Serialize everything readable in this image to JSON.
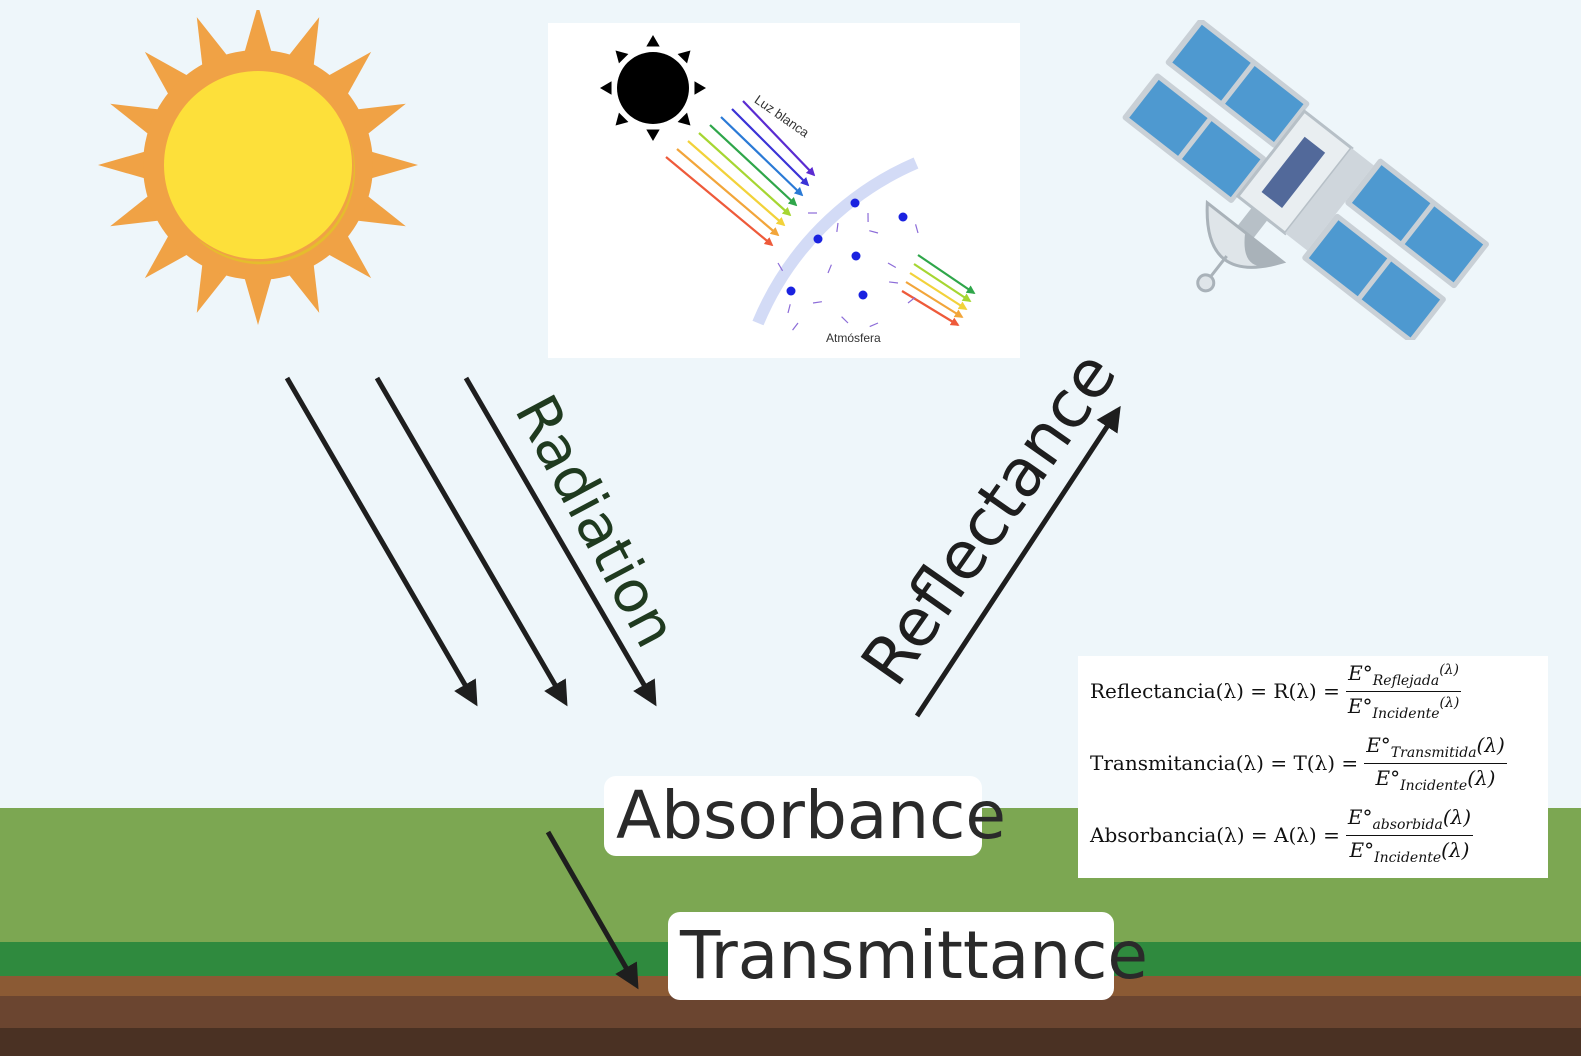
{
  "labels": {
    "radiation": "Radiation",
    "reflectance": "Reflectance",
    "absorbance": "Absorbance",
    "transmittance": "Transmittance"
  },
  "inset": {
    "white_light": "Luz blanca",
    "atmosphere": "Atmósfera"
  },
  "formulas": [
    {
      "lhs": "Reflectancia(λ) = R(λ) =",
      "num_sym": "E°",
      "num_sub": "Reflejada",
      "num_arg": "(λ)",
      "den_sym": "E°",
      "den_sub": "Incidente",
      "den_arg": "(λ)"
    },
    {
      "lhs": "Transmitancia(λ) = T(λ) =",
      "num_sym": "E°",
      "num_sub": "Transmitida",
      "num_arg": "(λ)",
      "den_sym": "E°",
      "den_sub": "Incidente",
      "den_arg": "(λ)"
    },
    {
      "lhs": "Absorbancia(λ) = A(λ) =",
      "num_sym": "E°",
      "num_sub": "absorbida",
      "num_arg": "(λ)",
      "den_sym": "E°",
      "den_sub": "Incidente",
      "den_arg": "(λ)"
    }
  ],
  "colors": {
    "sky": "#eef6fa",
    "grass": "#7ca752",
    "grass_dark": "#2f8a3e",
    "soil": "#8b5a34",
    "soil_dark": "#5c3b26",
    "sun_ray": "#f0a245",
    "sun_core": "#fde03a",
    "panel_blue": "#4e99d0"
  },
  "icons": [
    "sun-icon",
    "satellite-icon",
    "black-sun-icon"
  ]
}
